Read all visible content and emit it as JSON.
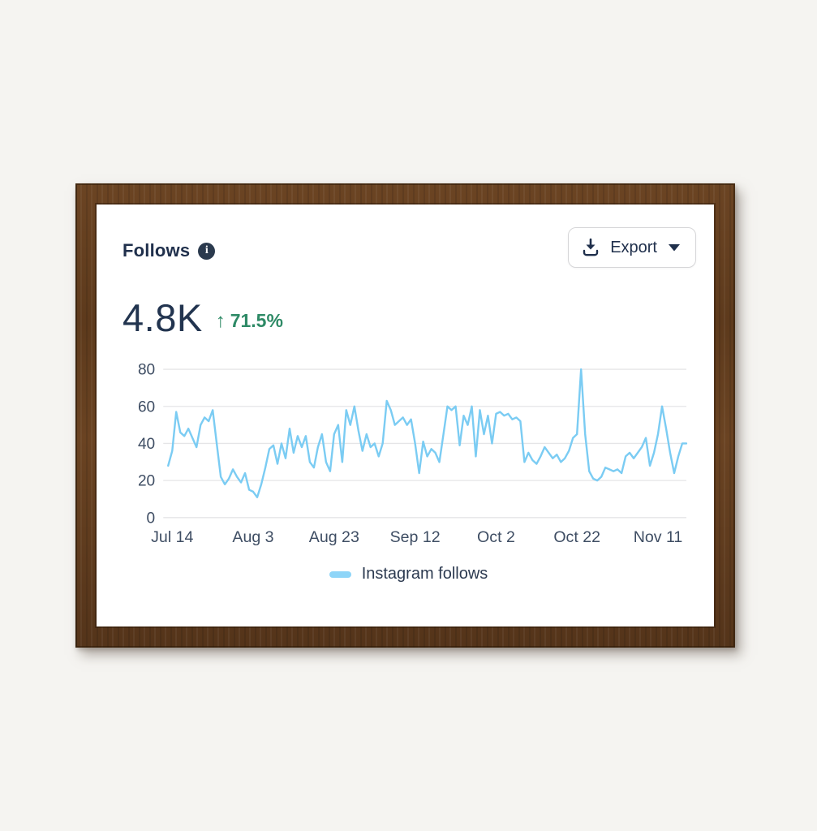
{
  "card": {
    "title": "Follows",
    "export": {
      "label": "Export"
    },
    "metric": {
      "value": "4.8K",
      "delta": "71.5%",
      "delta_direction": "up",
      "delta_color": "#2e8a66"
    }
  },
  "chart_data": {
    "type": "line",
    "title": "Follows",
    "xlabel": "",
    "ylabel": "",
    "grid": "horizontal",
    "legend_position": "bottom",
    "y_ticks": [
      0,
      20,
      40,
      60,
      80
    ],
    "ylim": [
      0,
      80
    ],
    "x_tick_labels": [
      "Jul 14",
      "Aug 3",
      "Aug 23",
      "Sep 12",
      "Oct 2",
      "Oct 22",
      "Nov 11"
    ],
    "x_tick_indices": [
      1,
      21,
      41,
      61,
      81,
      101,
      121
    ],
    "axis_label_color": "#3e4d63",
    "gridline_color": "#e5e5e7",
    "series": [
      {
        "name": "Instagram follows",
        "color": "#7bccf3",
        "legend_swatch_color": "#8ed5f8",
        "values": [
          28,
          36,
          57,
          46,
          44,
          48,
          43,
          38,
          50,
          54,
          52,
          58,
          40,
          22,
          18,
          21,
          26,
          22,
          19,
          24,
          15,
          14,
          11,
          18,
          27,
          37,
          39,
          29,
          40,
          32,
          48,
          35,
          44,
          38,
          44,
          30,
          27,
          38,
          45,
          30,
          25,
          45,
          50,
          30,
          58,
          50,
          60,
          47,
          36,
          45,
          38,
          40,
          33,
          40,
          63,
          58,
          50,
          52,
          54,
          50,
          53,
          40,
          24,
          41,
          33,
          37,
          35,
          30,
          45,
          60,
          58,
          60,
          39,
          55,
          50,
          60,
          33,
          58,
          45,
          55,
          40,
          56,
          57,
          55,
          56,
          53,
          54,
          52,
          30,
          35,
          31,
          29,
          33,
          38,
          35,
          32,
          34,
          30,
          32,
          36,
          43,
          45,
          80,
          45,
          25,
          21,
          20,
          22,
          27,
          26,
          25,
          26,
          24,
          33,
          35,
          32,
          35,
          38,
          43,
          28,
          35,
          45,
          60,
          48,
          35,
          24,
          33,
          40,
          40
        ]
      }
    ]
  }
}
